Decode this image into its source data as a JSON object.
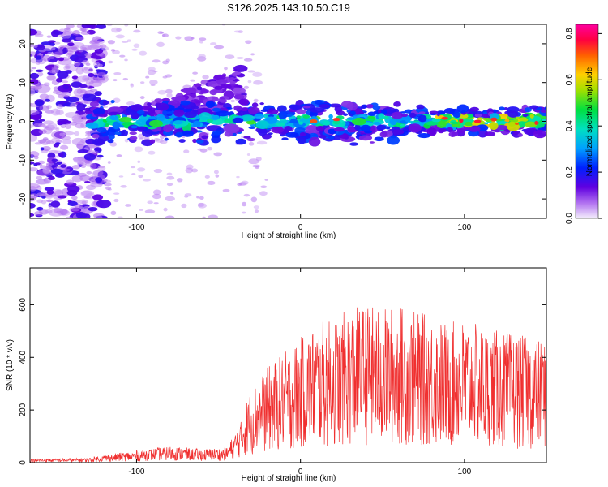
{
  "title": "S126.2025.143.10.50.C19",
  "chart_data": [
    {
      "type": "heatmap",
      "xlabel": "Height of straight line (km)",
      "ylabel": "Frequency (Hz)",
      "xlim": [
        -165,
        150
      ],
      "ylim": [
        -25,
        25
      ],
      "xticks": [
        -100,
        0,
        100
      ],
      "yticks": [
        -20,
        -10,
        0,
        10,
        20
      ],
      "colorbar": {
        "label": "Normalized spectral amplitude",
        "range": [
          0,
          0.84
        ],
        "ticks": [
          0.0,
          0.2,
          0.4,
          0.6,
          0.8
        ]
      },
      "ridge": {
        "frequency_hz": 0,
        "x_start_km": -125,
        "x_end_km": 150
      }
    },
    {
      "type": "line",
      "xlabel": "Height of straight line (km)",
      "ylabel": "SNR (10 * v/v)",
      "xlim": [
        -165,
        150
      ],
      "ylim": [
        0,
        740
      ],
      "xticks": [
        -100,
        0,
        100
      ],
      "yticks": [
        0,
        200,
        400,
        600
      ],
      "series_color": "#f03030",
      "envelope": {
        "x": [
          -165,
          -130,
          -120,
          -100,
          -80,
          -60,
          -45,
          -35,
          -30,
          -20,
          -10,
          0,
          10,
          20,
          30,
          40,
          50,
          60,
          70,
          80,
          90,
          100,
          110,
          120,
          130,
          140,
          150
        ],
        "y": [
          12,
          15,
          25,
          40,
          55,
          45,
          50,
          150,
          200,
          260,
          300,
          340,
          380,
          390,
          420,
          430,
          420,
          430,
          410,
          400,
          380,
          390,
          370,
          360,
          350,
          340,
          330
        ]
      }
    }
  ]
}
